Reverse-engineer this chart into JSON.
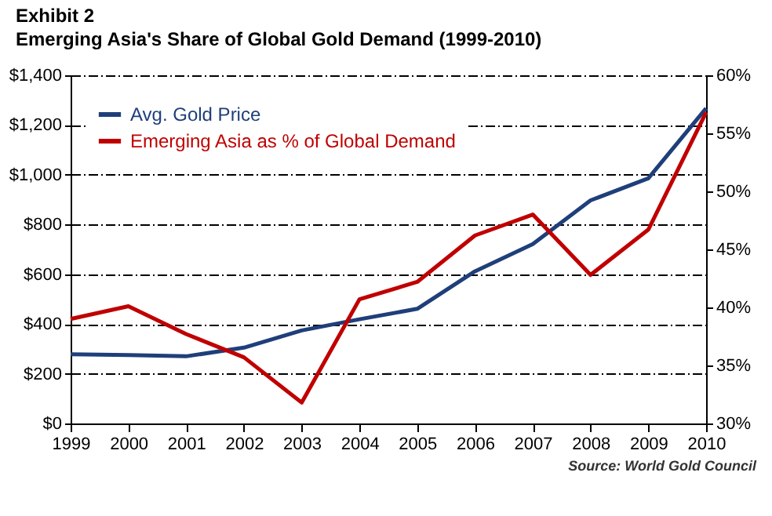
{
  "chart_data": {
    "type": "line",
    "title": "Exhibit 2",
    "subtitle": "Emerging Asia's Share of Global Gold Demand (1999-2010)",
    "categories": [
      "1999",
      "2000",
      "2001",
      "2002",
      "2003",
      "2004",
      "2005",
      "2006",
      "2007",
      "2008",
      "2009",
      "2010"
    ],
    "series": [
      {
        "name": "Avg. Gold Price",
        "color": "#1f3f7a",
        "values": [
          278,
          275,
          270,
          305,
          374,
          419,
          461,
          612,
          721,
          897,
          986,
          1267
        ]
      },
      {
        "name": "Emerging Asia as % of Global Demand",
        "color": "#c00000",
        "axis": "y2",
        "values": [
          39.0,
          40.1,
          37.7,
          35.7,
          31.8,
          40.7,
          42.2,
          46.2,
          48.0,
          42.8,
          46.7,
          56.8
        ]
      }
    ],
    "ylim": [
      0,
      1400
    ],
    "yticks": [
      {
        "value": 0,
        "label": "$0"
      },
      {
        "value": 200,
        "label": "$200"
      },
      {
        "value": 400,
        "label": "$400"
      },
      {
        "value": 600,
        "label": "$600"
      },
      {
        "value": 800,
        "label": "$800"
      },
      {
        "value": 1000,
        "label": "$1,000"
      },
      {
        "value": 1200,
        "label": "$1,200"
      },
      {
        "value": 1400,
        "label": "$1,400"
      }
    ],
    "y2lim": [
      30,
      60
    ],
    "y2ticks": [
      {
        "value": 30,
        "label": "30%"
      },
      {
        "value": 35,
        "label": "35%"
      },
      {
        "value": 40,
        "label": "40%"
      },
      {
        "value": 45,
        "label": "45%"
      },
      {
        "value": 50,
        "label": "50%"
      },
      {
        "value": 55,
        "label": "55%"
      },
      {
        "value": 60,
        "label": "60%"
      }
    ],
    "grid": "y",
    "legend": "top left",
    "annotations": [
      "Source:  World Gold Council"
    ]
  }
}
